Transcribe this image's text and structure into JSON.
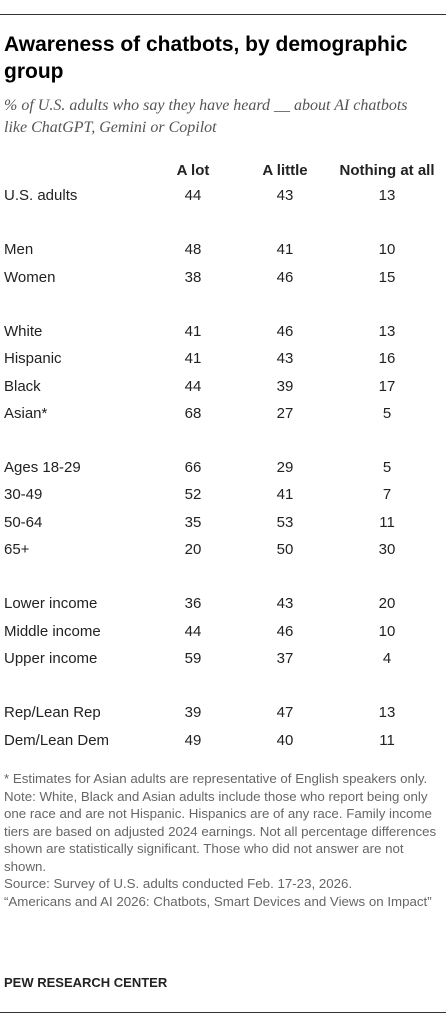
{
  "title": "Awareness of chatbots, by demographic group",
  "subtitle": "% of U.S. adults who say they have heard __ about AI chatbots like ChatGPT, Gemini or Copilot",
  "table": {
    "columns": [
      "A lot",
      "A little",
      "Nothing at all"
    ],
    "groups": [
      [
        {
          "label": "U.S. adults",
          "values": [
            44,
            43,
            13
          ]
        }
      ],
      [
        {
          "label": "Men",
          "values": [
            48,
            41,
            10
          ]
        },
        {
          "label": "Women",
          "values": [
            38,
            46,
            15
          ]
        }
      ],
      [
        {
          "label": "White",
          "values": [
            41,
            46,
            13
          ]
        },
        {
          "label": "Hispanic",
          "values": [
            41,
            43,
            16
          ]
        },
        {
          "label": "Black",
          "values": [
            44,
            39,
            17
          ]
        },
        {
          "label": "Asian*",
          "values": [
            68,
            27,
            5
          ]
        }
      ],
      [
        {
          "label": "Ages 18-29",
          "values": [
            66,
            29,
            5
          ]
        },
        {
          "label": "30-49",
          "values": [
            52,
            41,
            7
          ]
        },
        {
          "label": "50-64",
          "values": [
            35,
            53,
            11
          ]
        },
        {
          "label": "65+",
          "values": [
            20,
            50,
            30
          ]
        }
      ],
      [
        {
          "label": "Lower income",
          "values": [
            36,
            43,
            20
          ]
        },
        {
          "label": "Middle income",
          "values": [
            44,
            46,
            10
          ]
        },
        {
          "label": "Upper income",
          "values": [
            59,
            37,
            4
          ]
        }
      ],
      [
        {
          "label": "Rep/Lean Rep",
          "values": [
            39,
            47,
            13
          ]
        },
        {
          "label": "Dem/Lean Dem",
          "values": [
            49,
            40,
            11
          ]
        }
      ]
    ]
  },
  "notes": [
    "* Estimates for Asian adults are representative of English speakers only.",
    "Note: White, Black and Asian adults include those who report being only one race and are not Hispanic. Hispanics are of any race. Family income tiers are based on adjusted 2024 earnings. Not all percentage differences shown are statistically significant. Those who did not answer are not shown.",
    "Source: Survey of U.S. adults conducted Feb. 17-23, 2026.",
    "“Americans and AI 2026: Chatbots, Smart Devices and Views on Impact”"
  ],
  "footer": "PEW RESEARCH CENTER"
}
